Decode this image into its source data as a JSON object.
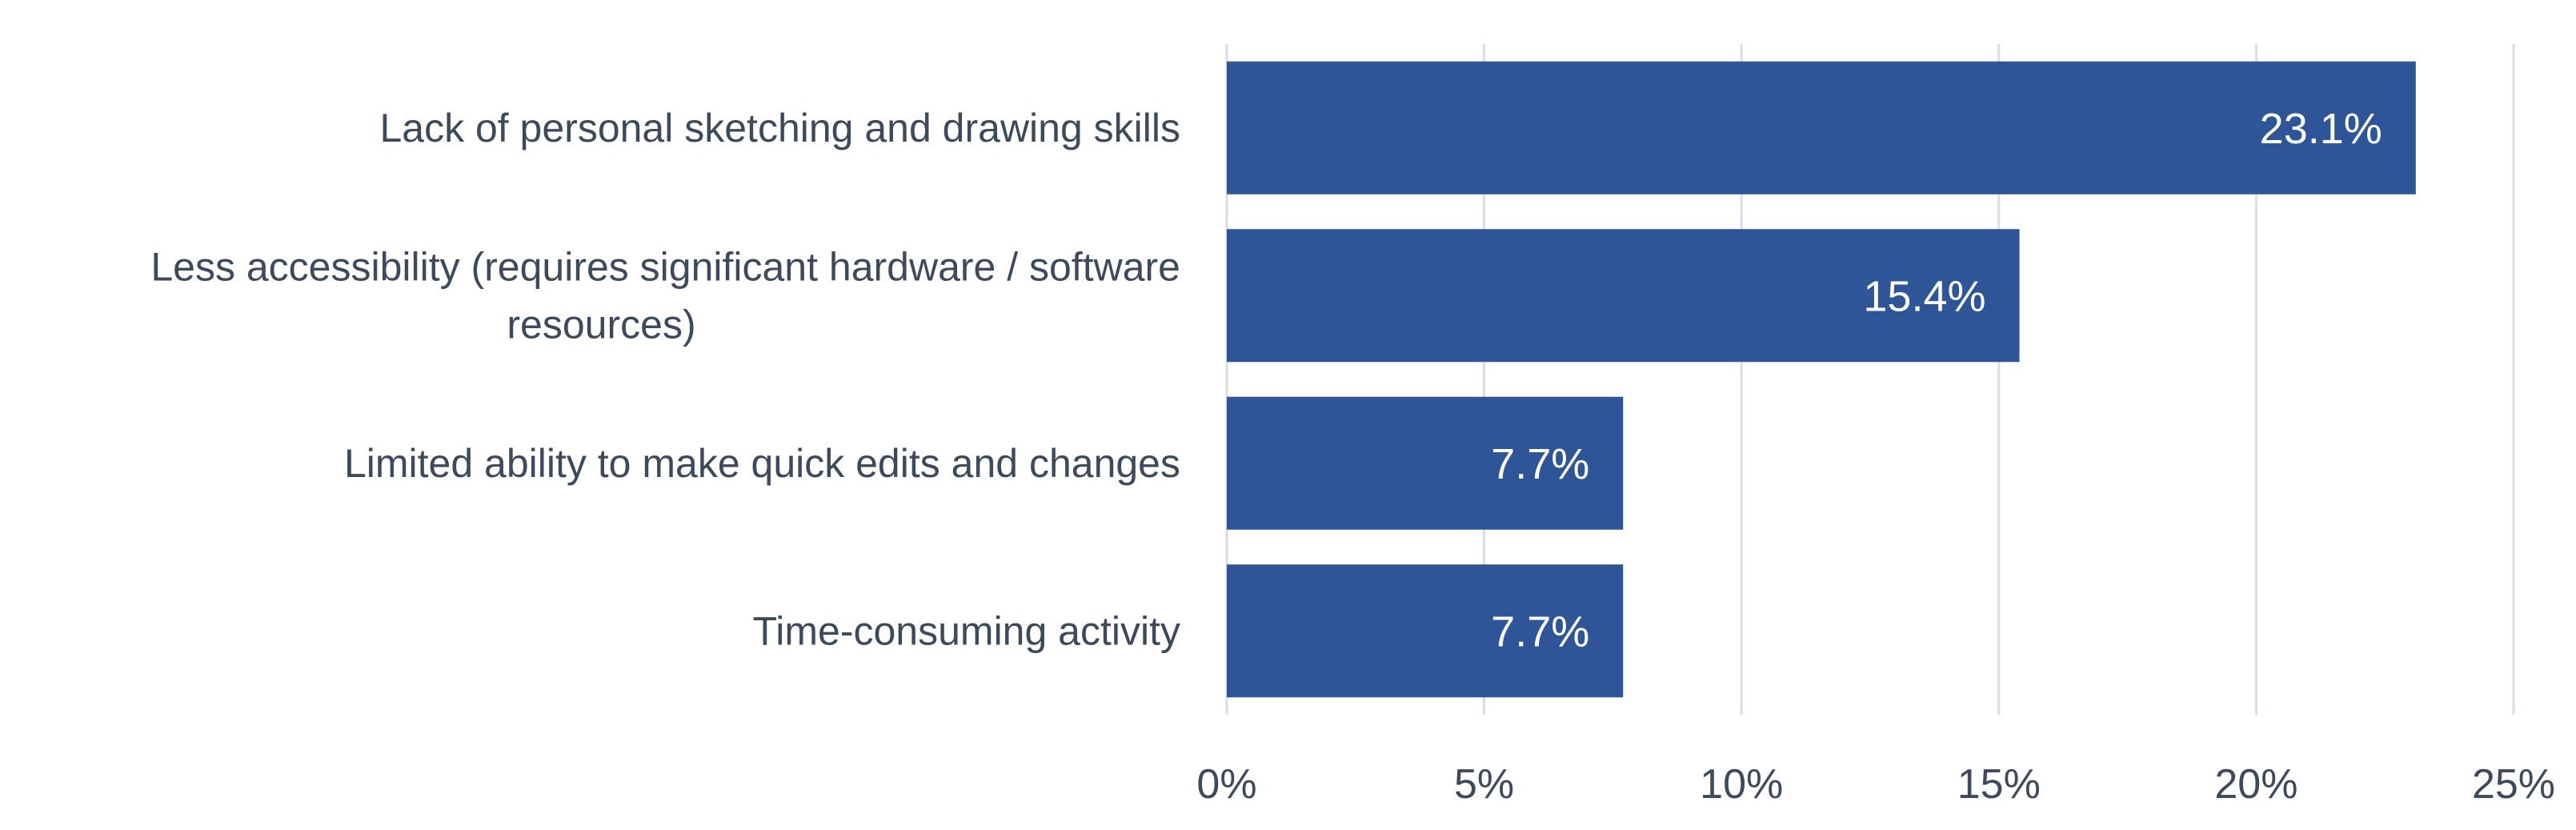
{
  "chart_data": {
    "type": "bar",
    "orientation": "horizontal",
    "categories": [
      [
        "Lack of personal sketching and drawing skills"
      ],
      [
        "Less accessibility (requires significant hardware / software",
        "resources)"
      ],
      [
        "Limited ability to make quick edits and changes"
      ],
      [
        "Time-consuming activity"
      ]
    ],
    "values": [
      23.1,
      15.4,
      7.7,
      7.7
    ],
    "data_labels": [
      "23.1%",
      "15.4%",
      "7.7%",
      "7.7%"
    ],
    "xticks": [
      0,
      5,
      10,
      15,
      20,
      25
    ],
    "xtick_labels": [
      "0%",
      "5%",
      "10%",
      "15%",
      "20%",
      "25%"
    ],
    "xlim": [
      0,
      25
    ],
    "grid": "vertical",
    "legend": "none",
    "title": "",
    "xlabel": "",
    "ylabel": "",
    "colors": {
      "bar": "#2e5597",
      "grid": "#d9dde6",
      "axis_text": "#3b4a5c",
      "label_on_bar": "#ffffff"
    }
  }
}
